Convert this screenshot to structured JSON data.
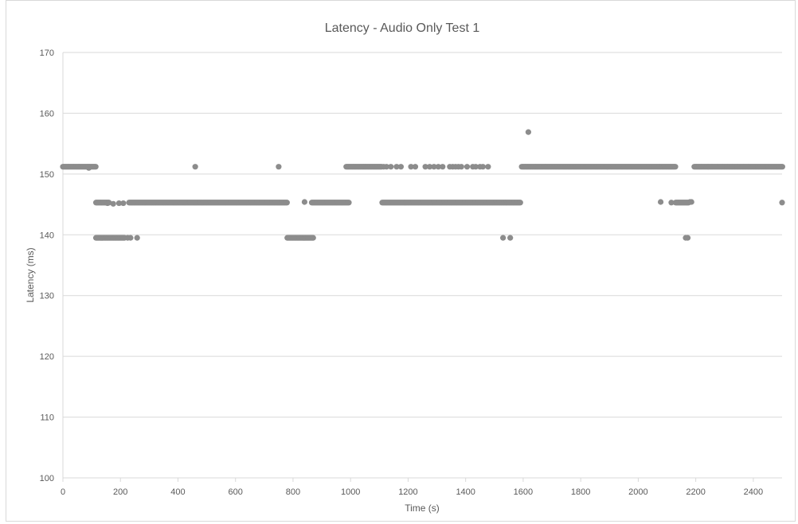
{
  "chart_data": {
    "type": "scatter",
    "title": "Latency - Audio Only Test 1",
    "xlabel": "Time (s)",
    "ylabel": "Latency (ms)",
    "xlim": [
      0,
      2500
    ],
    "ylim": [
      100,
      170
    ],
    "x_ticks": [
      "0",
      "200",
      "400",
      "600",
      "800",
      "1000",
      "1200",
      "1400",
      "1600",
      "1800",
      "2000",
      "2200",
      "2400"
    ],
    "y_ticks": [
      "100",
      "110",
      "120",
      "130",
      "140",
      "150",
      "160",
      "170"
    ],
    "grid": "horizontal",
    "marker_color": "#8c8c8c",
    "series": [
      {
        "segments": [
          {
            "x_start": 0,
            "x_end": 115,
            "step": 3,
            "y": 151.2
          },
          {
            "x_start": 115,
            "x_end": 160,
            "step": 3,
            "y": 145.3
          },
          {
            "x_start": 115,
            "x_end": 215,
            "step": 3,
            "y": 139.5
          },
          {
            "x_start": 230,
            "x_end": 780,
            "step": 3,
            "y": 145.3
          },
          {
            "x_start": 780,
            "x_end": 870,
            "step": 3,
            "y": 139.5
          },
          {
            "x_start": 865,
            "x_end": 995,
            "step": 3,
            "y": 145.3
          },
          {
            "x_start": 985,
            "x_end": 1110,
            "step": 3,
            "y": 151.2
          },
          {
            "x_start": 1110,
            "x_end": 1590,
            "step": 3,
            "y": 145.3
          },
          {
            "x_start": 1595,
            "x_end": 2130,
            "step": 3,
            "y": 151.2
          },
          {
            "x_start": 2130,
            "x_end": 2175,
            "step": 3,
            "y": 145.3
          },
          {
            "x_start": 2195,
            "x_end": 2502,
            "step": 3,
            "y": 151.2
          }
        ],
        "points": [
          [
            90,
            151.0
          ],
          [
            155,
            145.2
          ],
          [
            175,
            145.1
          ],
          [
            195,
            145.2
          ],
          [
            210,
            145.2
          ],
          [
            225,
            139.5
          ],
          [
            235,
            139.5
          ],
          [
            258,
            139.5
          ],
          [
            460,
            151.2
          ],
          [
            750,
            151.2
          ],
          [
            840,
            145.4
          ],
          [
            1115,
            151.2
          ],
          [
            1125,
            151.2
          ],
          [
            1140,
            151.2
          ],
          [
            1160,
            151.2
          ],
          [
            1175,
            151.2
          ],
          [
            1210,
            151.2
          ],
          [
            1225,
            151.2
          ],
          [
            1260,
            151.2
          ],
          [
            1275,
            151.2
          ],
          [
            1290,
            151.2
          ],
          [
            1305,
            151.2
          ],
          [
            1320,
            151.2
          ],
          [
            1345,
            151.2
          ],
          [
            1355,
            151.2
          ],
          [
            1365,
            151.2
          ],
          [
            1375,
            151.2
          ],
          [
            1385,
            151.2
          ],
          [
            1405,
            151.2
          ],
          [
            1425,
            151.2
          ],
          [
            1435,
            151.2
          ],
          [
            1450,
            151.2
          ],
          [
            1460,
            151.2
          ],
          [
            1478,
            151.2
          ],
          [
            1530,
            139.5
          ],
          [
            1555,
            139.5
          ],
          [
            1618,
            156.9
          ],
          [
            2078,
            145.4
          ],
          [
            2115,
            145.3
          ],
          [
            2165,
            139.5
          ],
          [
            2172,
            139.5
          ],
          [
            2180,
            145.4
          ],
          [
            2185,
            145.4
          ],
          [
            2500,
            145.3
          ]
        ]
      }
    ]
  }
}
